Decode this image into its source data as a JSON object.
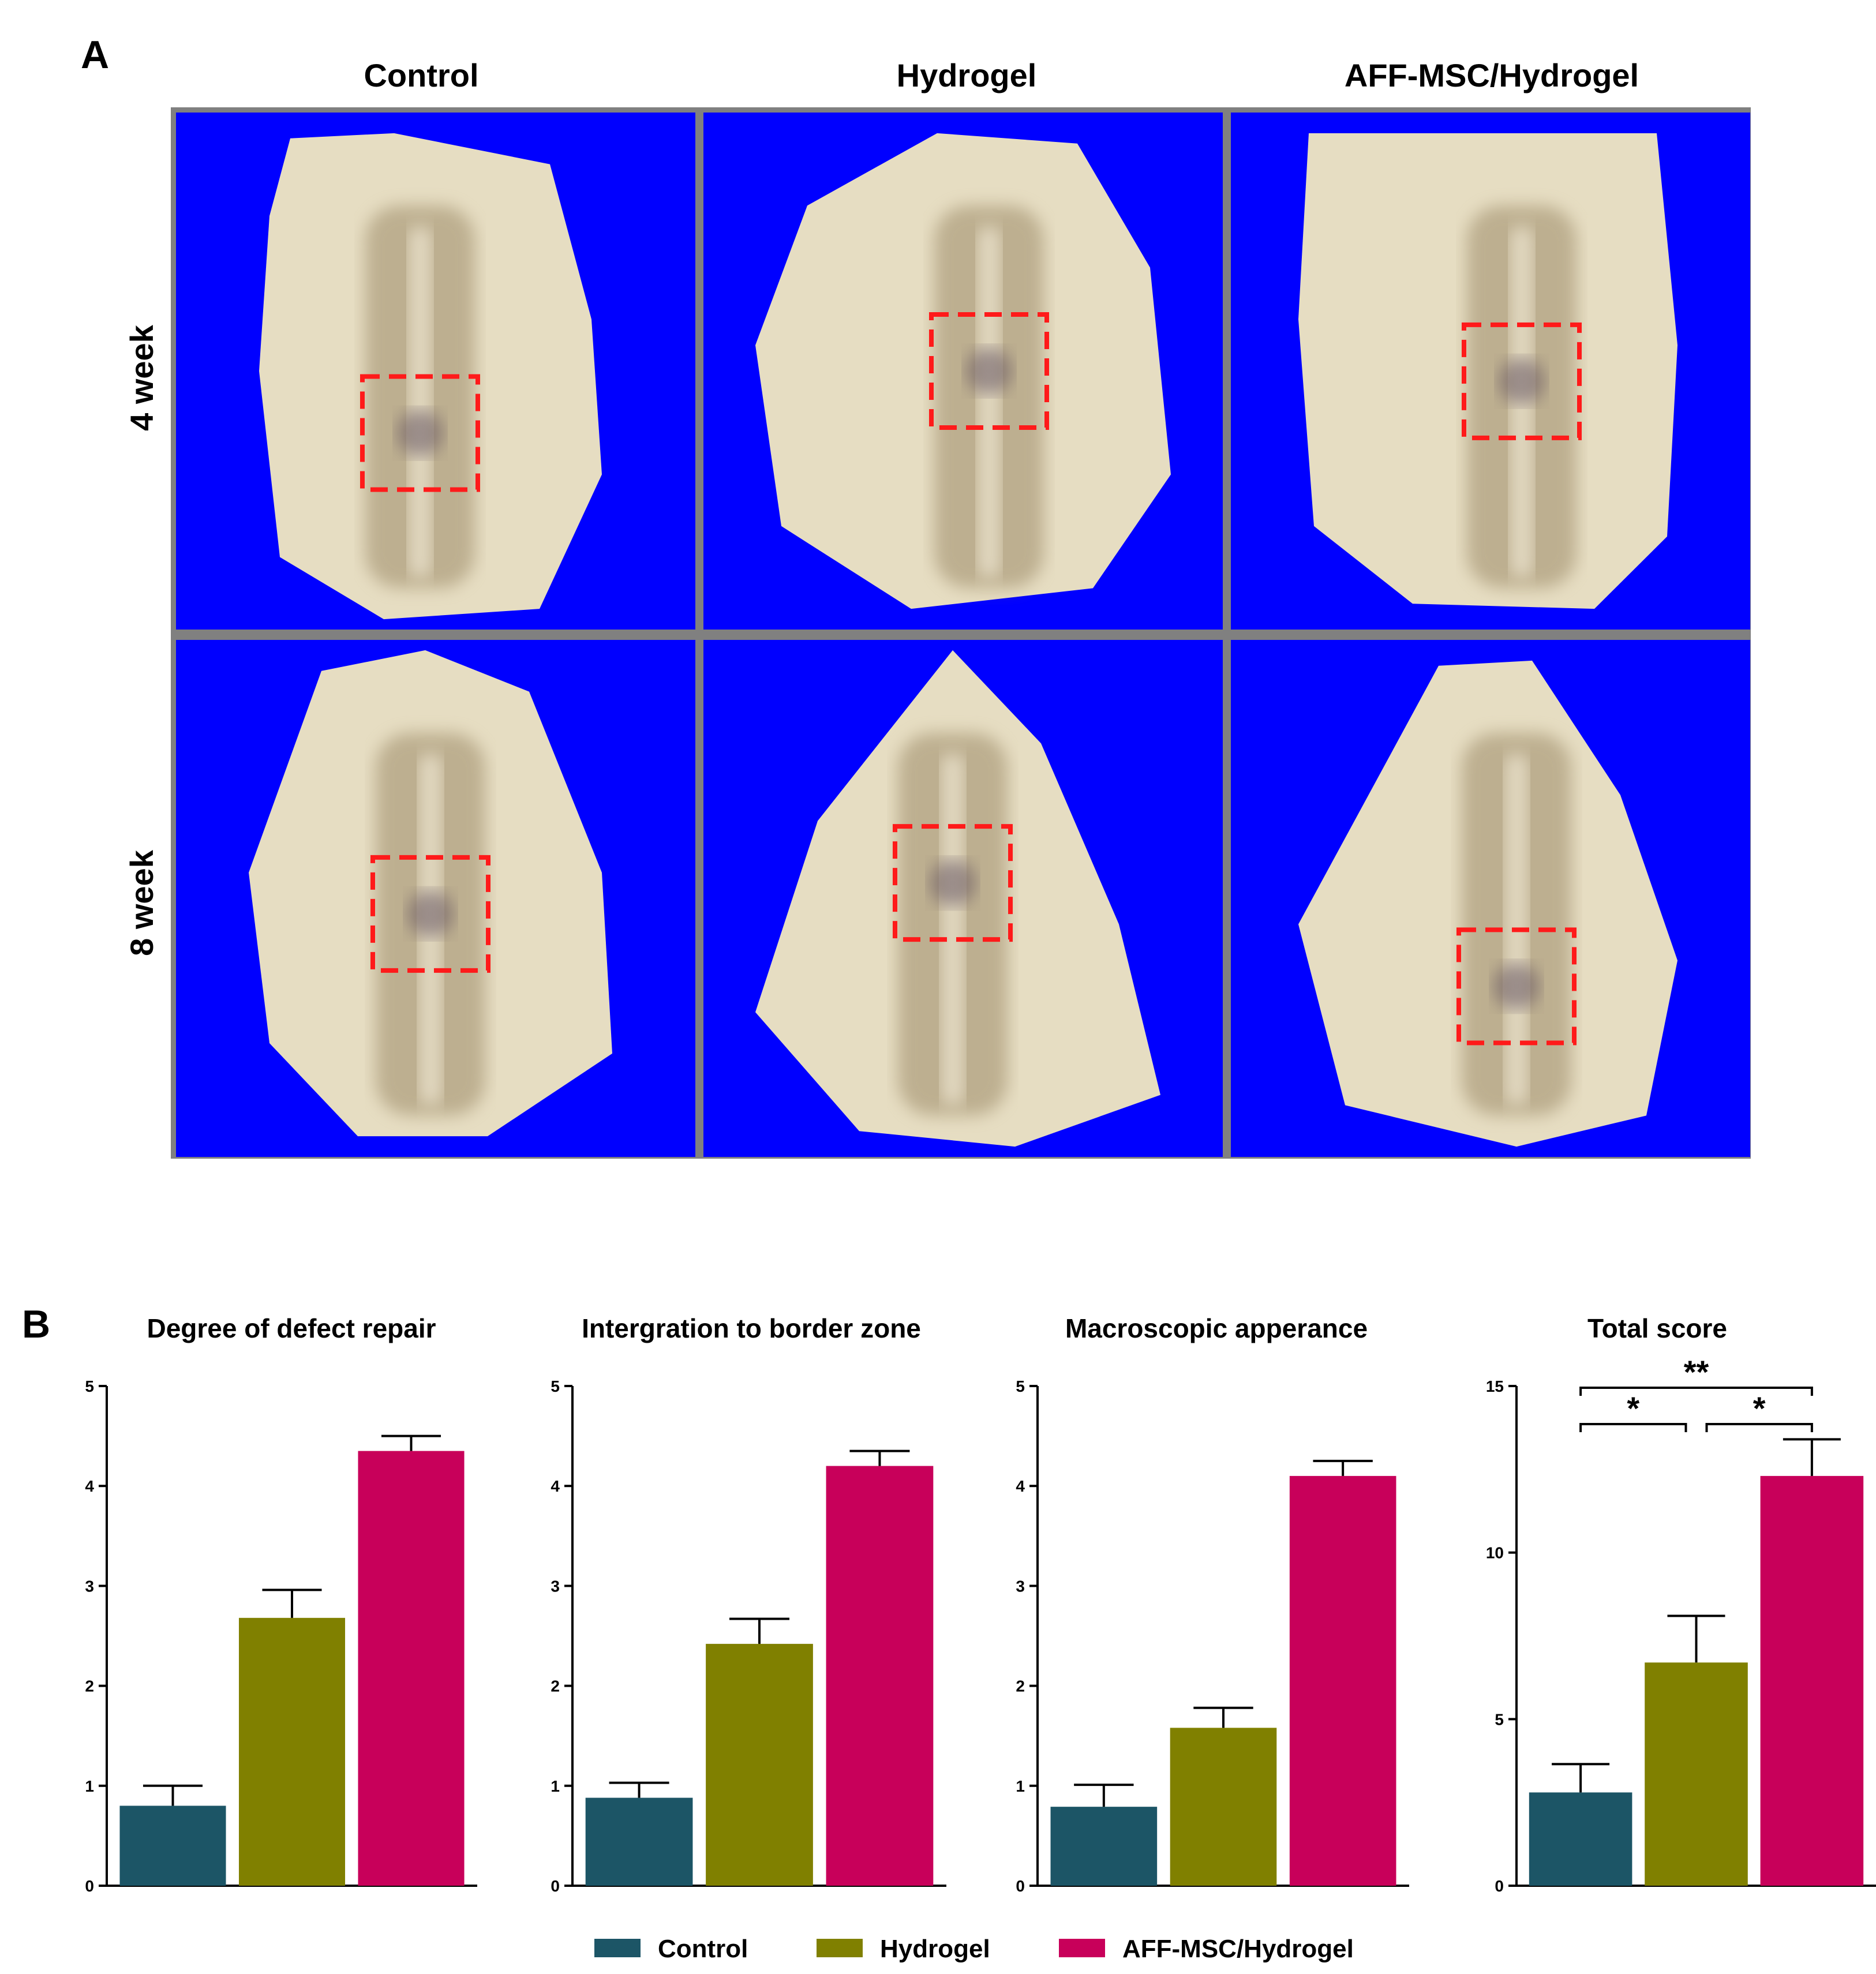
{
  "panel_a": {
    "label": "A",
    "columns": [
      "Control",
      "Hydrogel",
      "AFF-MSC/Hydrogel"
    ],
    "rows": [
      "4 week",
      "8 week"
    ],
    "photo_background": "#0000ff",
    "tissue_color": "#e6ddc2",
    "groove_color": "#9c8a68",
    "box_color": "#ff1a1a"
  },
  "panel_b": {
    "label": "B"
  },
  "legend": [
    {
      "name": "Control",
      "color": "#1c5566"
    },
    {
      "name": "Hydrogel",
      "color": "#808000"
    },
    {
      "name": "AFF-MSC/Hydrogel",
      "color": "#c8005a"
    }
  ],
  "chart_data": [
    {
      "type": "bar",
      "title": "Degree of defect repair",
      "categories": [
        "Control",
        "Hydrogel",
        "AFF-MSC/Hydrogel"
      ],
      "values": [
        0.8,
        2.68,
        4.35
      ],
      "errors": [
        0.2,
        0.28,
        0.15
      ],
      "ylim": [
        0,
        5
      ],
      "yticks": [
        0,
        1,
        2,
        3,
        4,
        5
      ],
      "significance": []
    },
    {
      "type": "bar",
      "title": "Intergration to border zone",
      "categories": [
        "Control",
        "Hydrogel",
        "AFF-MSC/Hydrogel"
      ],
      "values": [
        0.88,
        2.42,
        4.2
      ],
      "errors": [
        0.15,
        0.25,
        0.15
      ],
      "ylim": [
        0,
        5
      ],
      "yticks": [
        0,
        1,
        2,
        3,
        4,
        5
      ],
      "significance": []
    },
    {
      "type": "bar",
      "title": "Macroscopic apperance",
      "categories": [
        "Control",
        "Hydrogel",
        "AFF-MSC/Hydrogel"
      ],
      "values": [
        0.79,
        1.58,
        4.1
      ],
      "errors": [
        0.22,
        0.2,
        0.15
      ],
      "ylim": [
        0,
        5
      ],
      "yticks": [
        0,
        1,
        2,
        3,
        4,
        5
      ],
      "significance": []
    },
    {
      "type": "bar",
      "title": "Total score",
      "categories": [
        "Control",
        "Hydrogel",
        "AFF-MSC/Hydrogel"
      ],
      "values": [
        2.8,
        6.7,
        12.3
      ],
      "errors": [
        0.85,
        1.4,
        1.1
      ],
      "ylim": [
        0,
        15
      ],
      "yticks": [
        0,
        5,
        10,
        15
      ],
      "significance": [
        {
          "from": 0,
          "to": 1,
          "label": "*"
        },
        {
          "from": 1,
          "to": 2,
          "label": "*"
        },
        {
          "from": 0,
          "to": 2,
          "label": "**"
        }
      ]
    }
  ]
}
